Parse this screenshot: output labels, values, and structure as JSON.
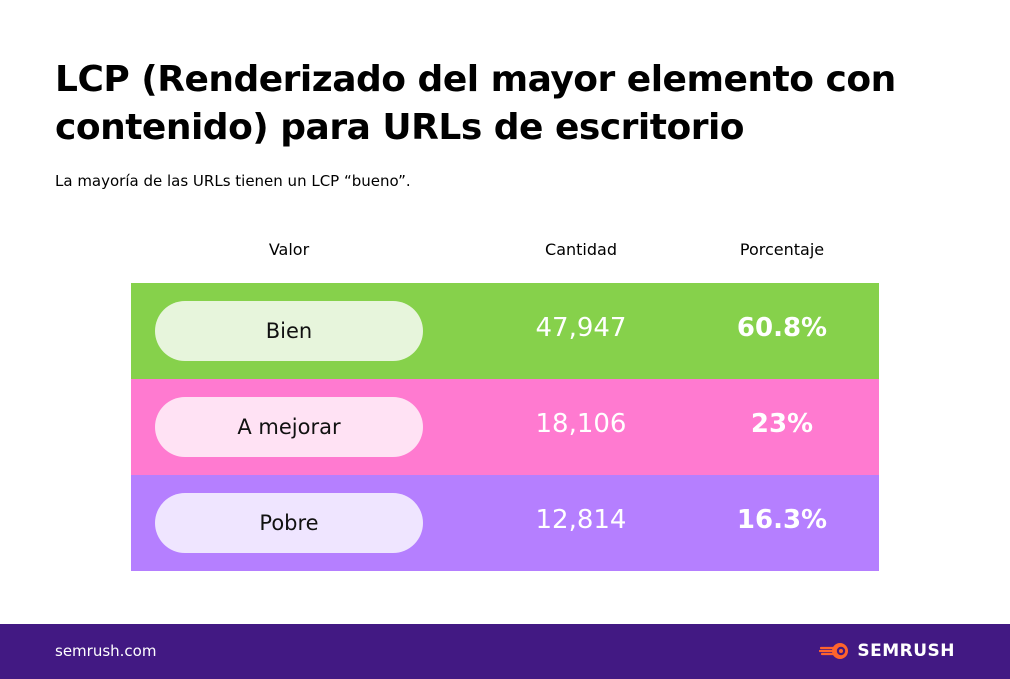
{
  "title": "LCP (Renderizado del mayor elemento con contenido) para URLs de escritorio",
  "subtitle": "La mayoría de las URLs tienen un LCP “bueno”.",
  "footer": {
    "url": "semrush.com",
    "brand": "SEMRUSH"
  },
  "colors": {
    "footer_background": "#421983",
    "logo_accent": "#ff642d"
  },
  "chart_data": {
    "type": "table",
    "columns": [
      "Valor",
      "Cantidad",
      "Porcentaje"
    ],
    "rows": [
      {
        "label": "Bien",
        "count": "47,947",
        "percent": "60.8%",
        "row_color": "#86d14b",
        "pill_color": "#e7f5dc"
      },
      {
        "label": "A mejorar",
        "count": "18,106",
        "percent": "23%",
        "row_color": "#ff7ad0",
        "pill_color": "#ffe2f4"
      },
      {
        "label": "Pobre",
        "count": "12,814",
        "percent": "16.3%",
        "row_color": "#b57fff",
        "pill_color": "#efe5ff"
      }
    ]
  }
}
